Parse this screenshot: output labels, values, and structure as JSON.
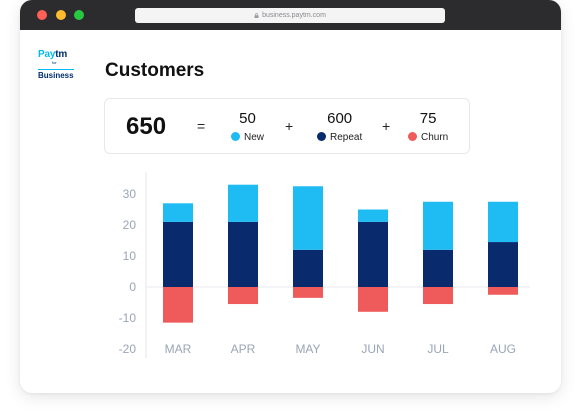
{
  "browser": {
    "url": "business.paytm.com"
  },
  "logo": {
    "brand_pay": "Pay",
    "brand_tm": "tm",
    "for": "for",
    "business": "Business"
  },
  "page": {
    "title": "Customers"
  },
  "summary": {
    "total": "650",
    "equals": "=",
    "plus": "+",
    "items": [
      {
        "value": "50",
        "label": "New",
        "color": "#1ebcf2"
      },
      {
        "value": "600",
        "label": "Repeat",
        "color": "#0a2a6e"
      },
      {
        "value": "75",
        "label": "Churn",
        "color": "#ef5b5b"
      }
    ]
  },
  "chart_data": {
    "type": "bar",
    "stacked": true,
    "categories": [
      "MAR",
      "APR",
      "MAY",
      "JUN",
      "JUL",
      "AUG"
    ],
    "series": [
      {
        "name": "Repeat",
        "color": "#0a2a6e",
        "values": [
          21,
          21,
          12,
          21,
          12,
          14.5
        ]
      },
      {
        "name": "New",
        "color": "#1ebcf2",
        "values": [
          6,
          12,
          20.5,
          4,
          15.5,
          13
        ]
      },
      {
        "name": "Churn",
        "color": "#ef5b5b",
        "values": [
          -11.5,
          -5.5,
          -3.5,
          -8,
          -5.5,
          -2.5
        ]
      }
    ],
    "ylim": [
      -20,
      30
    ],
    "yticks": [
      30,
      20,
      10,
      0,
      -10,
      -20
    ],
    "grid": false,
    "title": "",
    "xlabel": "",
    "ylabel": ""
  }
}
